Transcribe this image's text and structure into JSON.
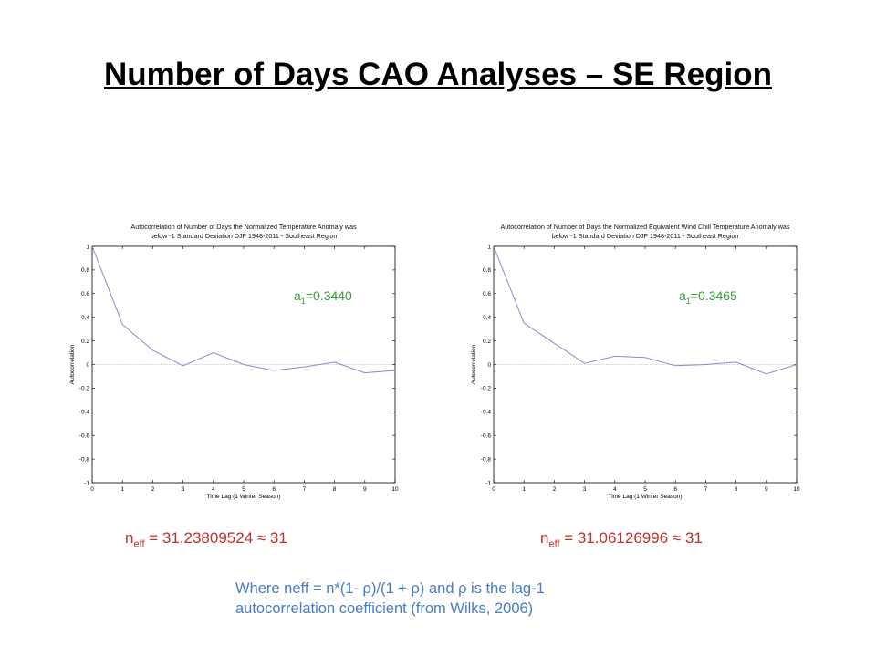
{
  "slide": {
    "title": "Number of Days CAO Analyses – SE Region",
    "note_line1": "Where neff = n*(1- ρ)/(1 + ρ)  and ρ is the lag-1",
    "note_line2": "autocorrelation coefficient  (from Wilks, 2006)"
  },
  "left_panel": {
    "coef_prefix": "a",
    "coef_sub": "1",
    "coef_value": "=0.3440",
    "neff_prefix": "n",
    "neff_sub": "eff",
    "neff_value": " = 31.23809524 ≈ 31"
  },
  "right_panel": {
    "coef_prefix": "a",
    "coef_sub": "1",
    "coef_value": "=0.3465",
    "neff_prefix": "n",
    "neff_sub": "eff",
    "neff_value": " = 31.06126996 ≈ 31"
  },
  "chart_data": [
    {
      "type": "line",
      "title_line1": "Autocorrelation of Number of Days the Normalized Temperature Anomaly was",
      "title_line2": "below -1 Standard Deviation DJF 1948-2011 - Southeast Region",
      "xlabel": "Time Lag (1 Winter Season)",
      "ylabel": "Autocorrelation",
      "xlim": [
        0,
        10
      ],
      "ylim": [
        -1,
        1
      ],
      "x_ticks": [
        0,
        1,
        2,
        3,
        4,
        5,
        6,
        7,
        8,
        9,
        10
      ],
      "y_ticks": [
        -1,
        -0.8,
        -0.6,
        -0.4,
        -0.2,
        0,
        0.2,
        0.4,
        0.6,
        0.8,
        1
      ],
      "x": [
        0,
        1,
        2,
        3,
        4,
        5,
        6,
        7,
        8,
        9,
        10
      ],
      "y": [
        1.0,
        0.34,
        0.12,
        -0.01,
        0.1,
        0.0,
        -0.05,
        -0.02,
        0.02,
        -0.07,
        -0.05
      ],
      "line_color": "#8a8ad0",
      "zero_line": true,
      "grid": false
    },
    {
      "type": "line",
      "title_line1": "Autocorrelation of Number of Days the Normalized Equivalent Wind Chill Temperature Anomaly was",
      "title_line2": "below -1 Standard Deviation DJF 1948-2011 - Southeast Region",
      "xlabel": "Time Lag (1 Winter Season)",
      "ylabel": "Autocorrelation",
      "xlim": [
        0,
        10
      ],
      "ylim": [
        -1,
        1
      ],
      "x_ticks": [
        0,
        1,
        2,
        3,
        4,
        5,
        6,
        7,
        8,
        9,
        10
      ],
      "y_ticks": [
        -1,
        -0.8,
        -0.6,
        -0.4,
        -0.2,
        0,
        0.2,
        0.4,
        0.6,
        0.8,
        1
      ],
      "x": [
        0,
        1,
        2,
        3,
        4,
        5,
        6,
        7,
        8,
        9,
        10
      ],
      "y": [
        1.0,
        0.35,
        0.18,
        0.01,
        0.07,
        0.06,
        -0.01,
        0.0,
        0.02,
        -0.08,
        0.0
      ],
      "line_color": "#8a8ad0",
      "zero_line": true,
      "grid": false
    }
  ]
}
